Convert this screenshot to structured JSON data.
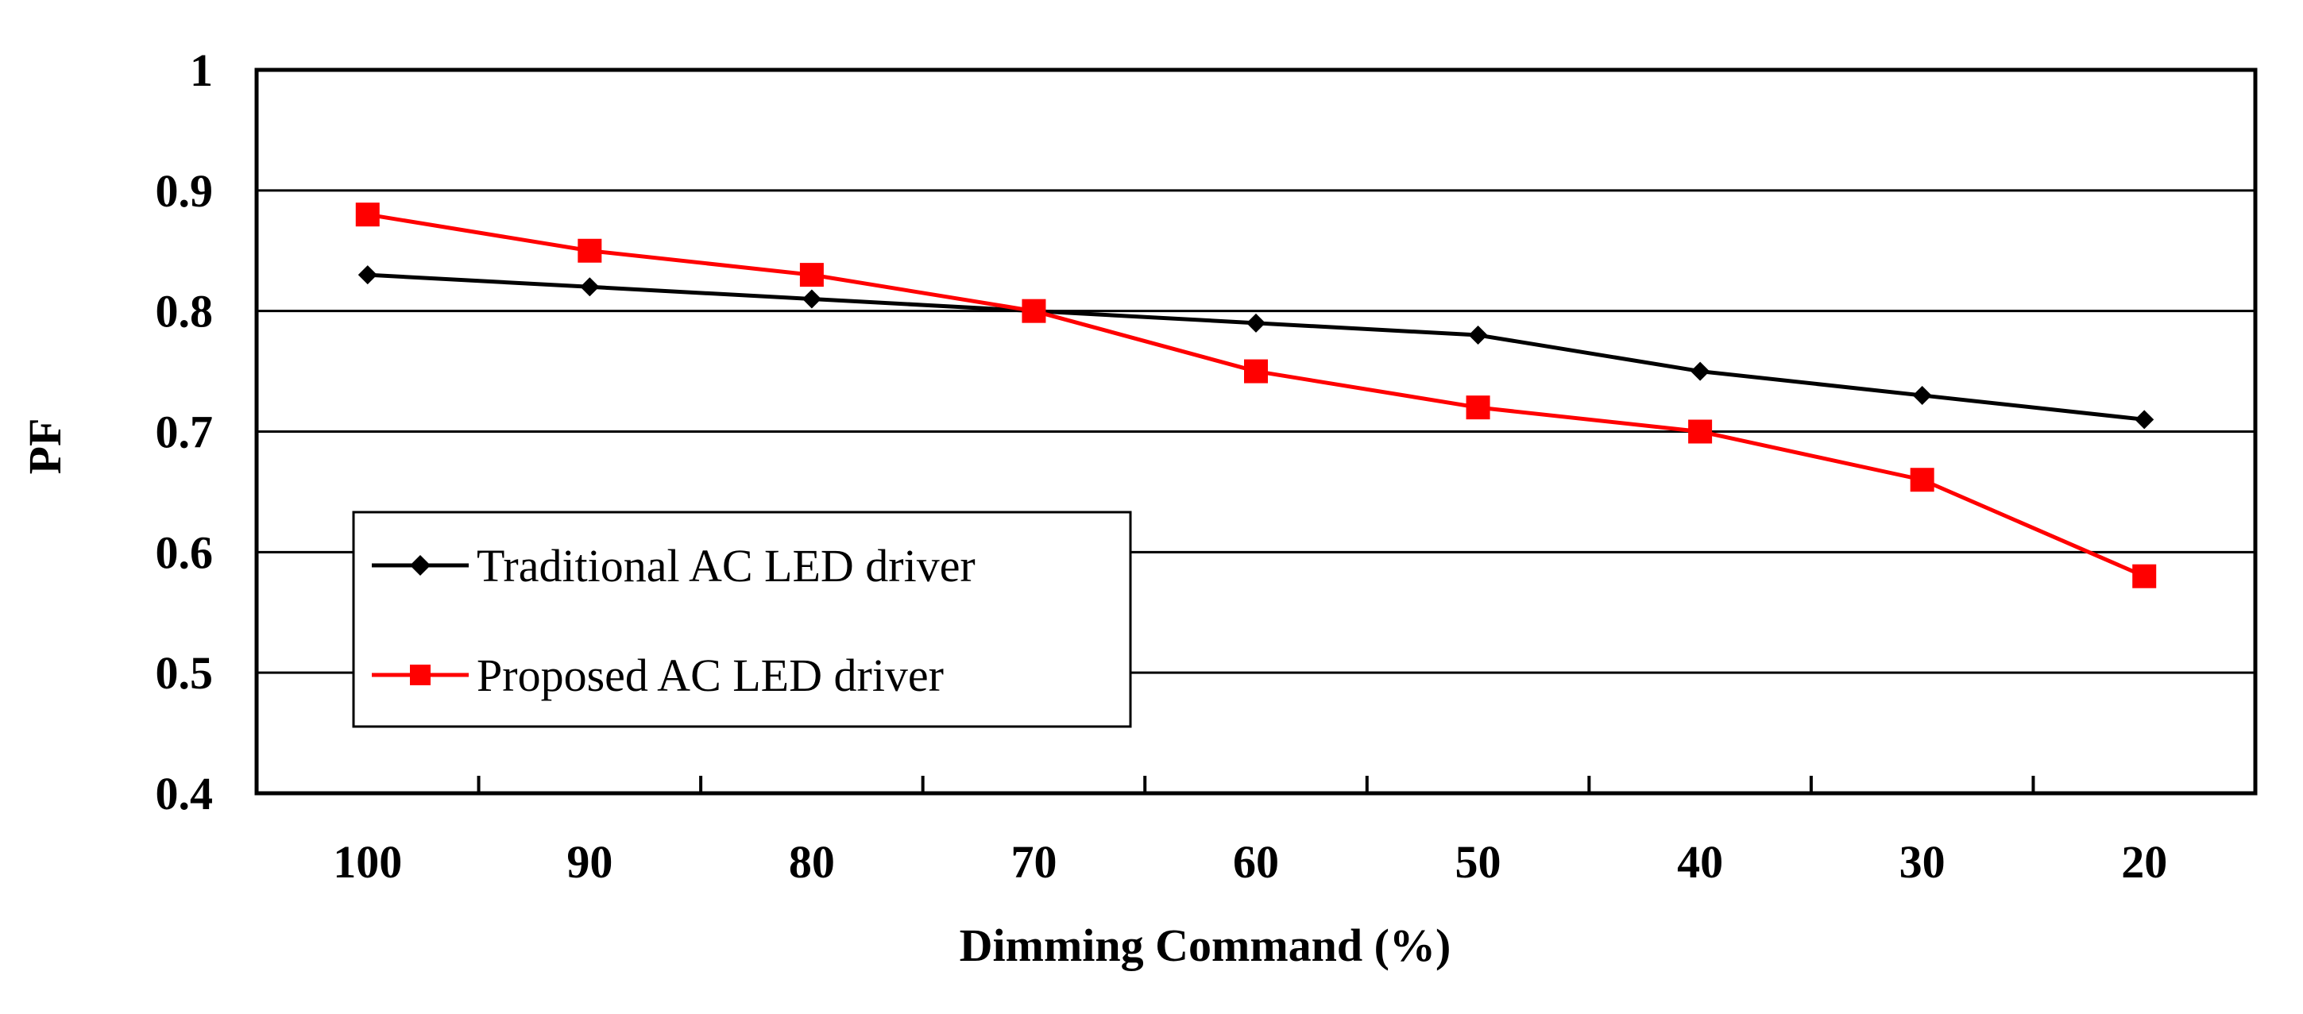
{
  "chart_data": {
    "type": "line",
    "title": "",
    "xlabel": "Dimming Command (%)",
    "ylabel": "PF",
    "categories": [
      "100",
      "90",
      "80",
      "70",
      "60",
      "50",
      "40",
      "30",
      "20"
    ],
    "ylim": [
      0.4,
      1
    ],
    "yticks": [
      "0.4",
      "0.5",
      "0.6",
      "0.7",
      "0.8",
      "0.9",
      "1"
    ],
    "grid": true,
    "legend_position": "lower-left",
    "series": [
      {
        "name": "Traditional AC LED driver",
        "color": "#000000",
        "marker": "diamond",
        "values": [
          0.83,
          0.82,
          0.81,
          0.8,
          0.79,
          0.78,
          0.75,
          0.73,
          0.71
        ]
      },
      {
        "name": "Proposed AC LED driver",
        "color": "#ff0000",
        "marker": "square",
        "values": [
          0.88,
          0.85,
          0.83,
          0.8,
          0.75,
          0.72,
          0.7,
          0.66,
          0.58
        ]
      }
    ]
  }
}
